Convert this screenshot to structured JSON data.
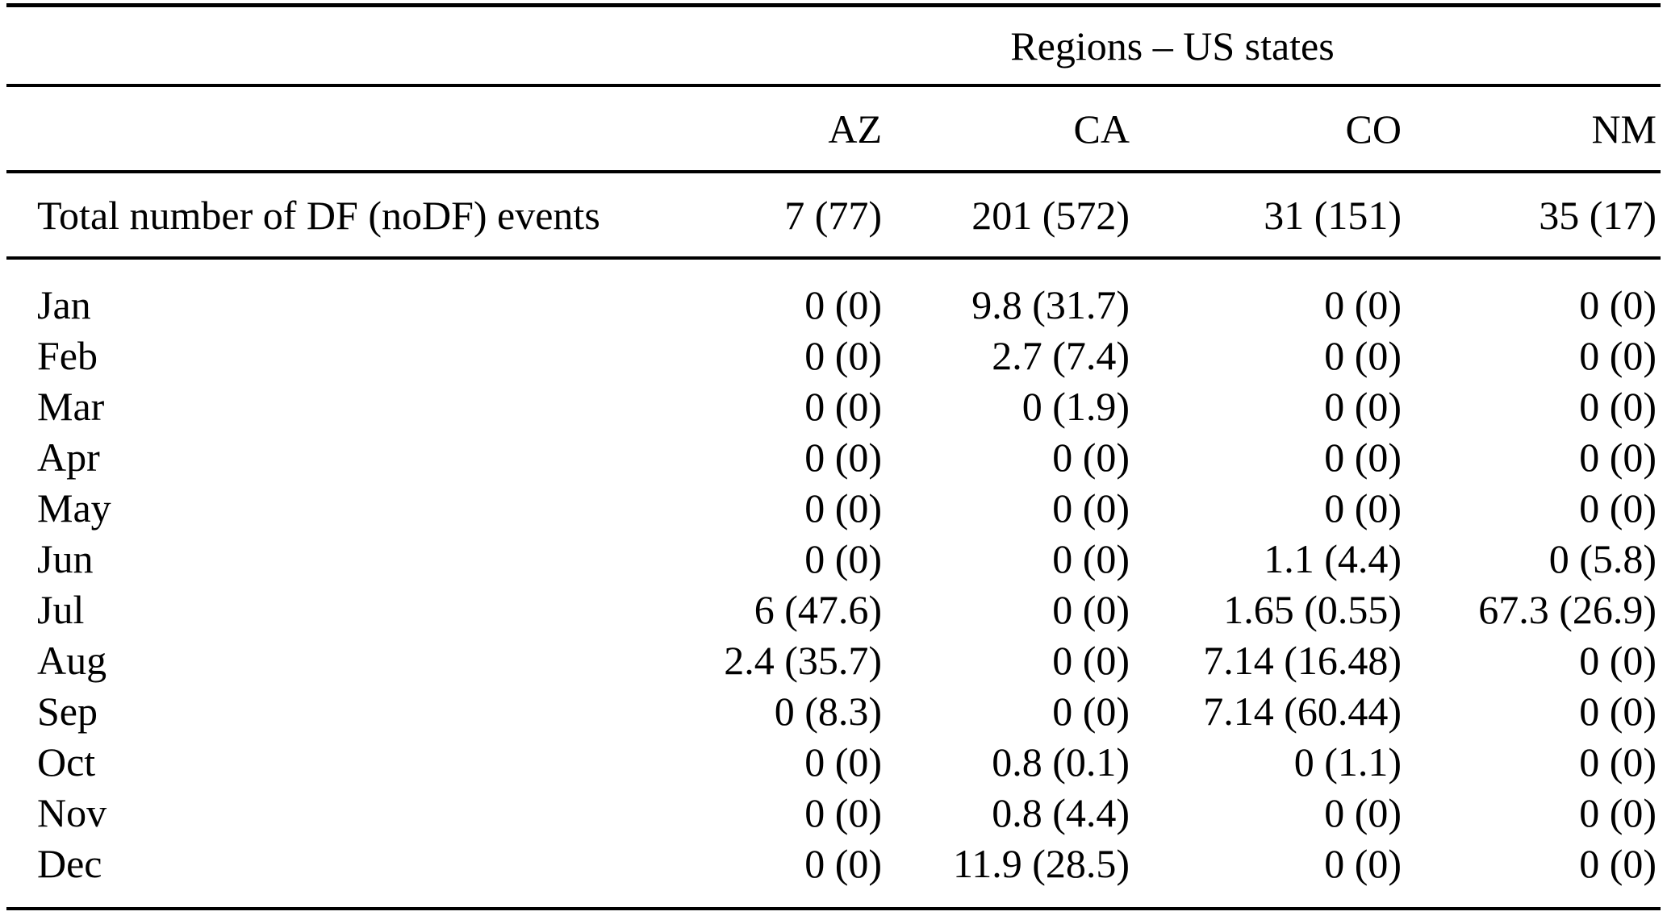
{
  "table": {
    "group_header": "Regions – US states",
    "columns": [
      "AZ",
      "CA",
      "CO",
      "NM"
    ],
    "total_row": {
      "label": "Total number of DF (noDF) events",
      "values": [
        "7 (77)",
        "201 (572)",
        "31 (151)",
        "35 (17)"
      ]
    },
    "rows": [
      {
        "label": "Jan",
        "values": [
          "0 (0)",
          "9.8 (31.7)",
          "0 (0)",
          "0 (0)"
        ]
      },
      {
        "label": "Feb",
        "values": [
          "0 (0)",
          "2.7 (7.4)",
          "0 (0)",
          "0 (0)"
        ]
      },
      {
        "label": "Mar",
        "values": [
          "0 (0)",
          "0 (1.9)",
          "0 (0)",
          "0 (0)"
        ]
      },
      {
        "label": "Apr",
        "values": [
          "0 (0)",
          "0 (0)",
          "0 (0)",
          "0 (0)"
        ]
      },
      {
        "label": "May",
        "values": [
          "0 (0)",
          "0 (0)",
          "0 (0)",
          "0 (0)"
        ]
      },
      {
        "label": "Jun",
        "values": [
          "0 (0)",
          "0 (0)",
          "1.1 (4.4)",
          "0 (5.8)"
        ]
      },
      {
        "label": "Jul",
        "values": [
          "6 (47.6)",
          "0 (0)",
          "1.65 (0.55)",
          "67.3 (26.9)"
        ]
      },
      {
        "label": "Aug",
        "values": [
          "2.4 (35.7)",
          "0 (0)",
          "7.14 (16.48)",
          "0 (0)"
        ]
      },
      {
        "label": "Sep",
        "values": [
          "0 (8.3)",
          "0 (0)",
          "7.14 (60.44)",
          "0 (0)"
        ]
      },
      {
        "label": "Oct",
        "values": [
          "0 (0)",
          "0.8 (0.1)",
          "0 (1.1)",
          "0 (0)"
        ]
      },
      {
        "label": "Nov",
        "values": [
          "0 (0)",
          "0.8 (4.4)",
          "0 (0)",
          "0 (0)"
        ]
      },
      {
        "label": "Dec",
        "values": [
          "0 (0)",
          "11.9 (28.5)",
          "0 (0)",
          "0 (0)"
        ]
      }
    ]
  }
}
